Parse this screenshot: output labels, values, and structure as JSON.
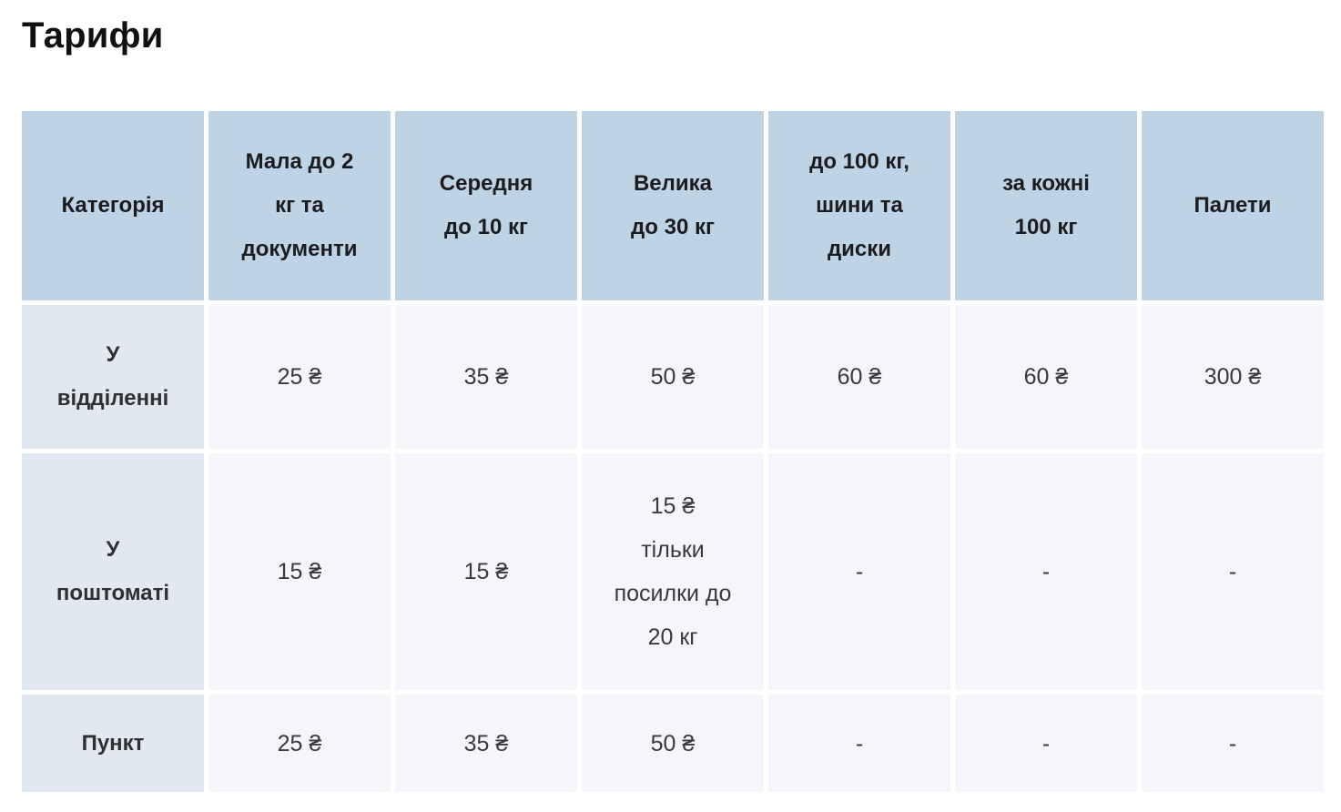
{
  "page": {
    "title": "Тарифи"
  },
  "colors": {
    "header_bg": "#bed4e4",
    "row_label_bg": "#e1e8f0",
    "data_cell_bg": "#f5f5fa",
    "title_text": "#111111",
    "cell_text": "#3a3a3c"
  },
  "table": {
    "columns": [
      "Категорія",
      "Мала до 2\nкг та\nдокументи",
      "Середня\nдо 10 кг",
      "Велика\nдо 30 кг",
      "до 100 кг,\nшини та\nдиски",
      "за кожні\n100 кг",
      "Палети"
    ],
    "rows": [
      {
        "label": "У\nвідділенні",
        "values": [
          "25 ₴",
          "35 ₴",
          "50 ₴",
          "60 ₴",
          "60 ₴",
          "300 ₴"
        ]
      },
      {
        "label": "У\nпоштоматі",
        "values": [
          "15 ₴",
          "15 ₴",
          "15 ₴\nтільки\nпосилки до\n20 кг",
          "-",
          "-",
          "-"
        ]
      },
      {
        "label": "Пункт",
        "values": [
          "25 ₴",
          "35 ₴",
          "50 ₴",
          "-",
          "-",
          "-"
        ]
      }
    ]
  }
}
